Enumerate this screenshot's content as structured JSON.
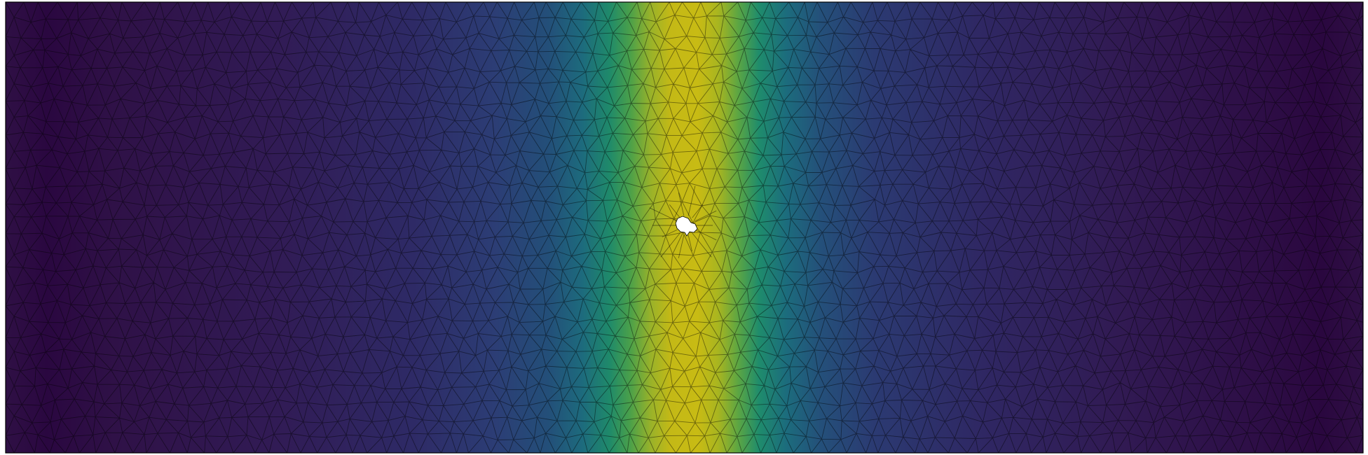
{
  "chart_data": {
    "type": "heatmap",
    "title": "",
    "xlabel": "",
    "ylabel": "",
    "colormap": "viridis",
    "colormap_stops": [
      "#440154",
      "#3b528b",
      "#21918c",
      "#5ec962",
      "#fde725"
    ],
    "rendered_palette": {
      "edge_dark": "#2d0a43",
      "mid_dark": "#311d57",
      "blue": "#2c4579",
      "teal": "#1b7a7e",
      "green": "#3a9e4f",
      "lime": "#8fb12e",
      "yellow": "#c9ba12"
    },
    "field_peak_x_fraction": 0.5,
    "field_peak_value": 1.0,
    "field_min_value": 0.0,
    "mesh": "triangular",
    "mesh_edge_color": "#000000",
    "domain_border_color": "#000000",
    "hole_fill_color": "#ffffff",
    "hole_count": 1,
    "grid": false,
    "legend": "none"
  }
}
